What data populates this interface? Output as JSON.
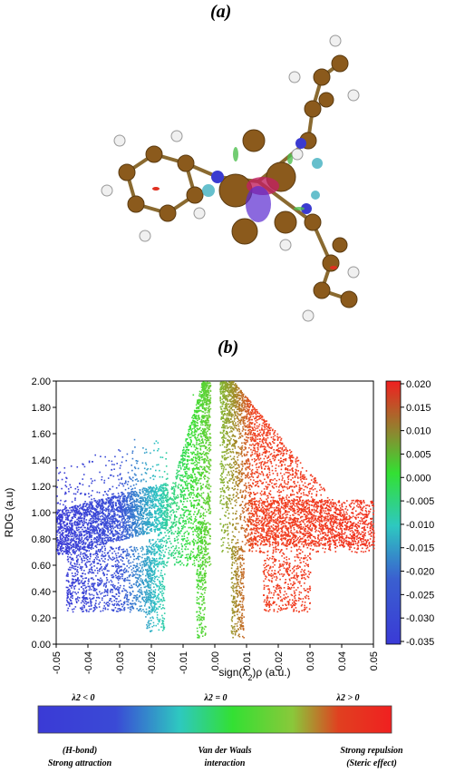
{
  "panel_labels": {
    "a": "(a)",
    "b": "(b)"
  },
  "chart_data": {
    "type": "scatter",
    "title": "",
    "xlabel": "sign(λ2)ρ (a.u.)",
    "ylabel": "RDG (a.u)",
    "xlim": [
      -0.05,
      0.05
    ],
    "ylim": [
      0.0,
      2.0
    ],
    "x_ticks": [
      "-0.05",
      "-0.04",
      "-0.03",
      "-0.02",
      "-0.01",
      "0.00",
      "0.01",
      "0.02",
      "0.03",
      "0.04",
      "0.05"
    ],
    "y_ticks": [
      "0.00",
      "0.20",
      "0.40",
      "0.60",
      "0.80",
      "1.00",
      "1.20",
      "1.40",
      "1.60",
      "1.80",
      "2.00"
    ],
    "colorbar": {
      "range": [
        -0.035,
        0.02
      ],
      "ticks": [
        "0.020",
        "0.015",
        "0.010",
        "0.005",
        "0.000",
        "-0.005",
        "-0.010",
        "-0.015",
        "-0.020",
        "-0.025",
        "-0.030",
        "-0.035"
      ],
      "colors": [
        "#3a3ad6",
        "#2ec8c0",
        "#33e033",
        "#8ac83a",
        "#f04020"
      ]
    },
    "series": [
      {
        "points": [
          [
            -0.049,
            0.95
          ],
          [
            -0.045,
            1.05
          ],
          [
            -0.04,
            1.15
          ],
          [
            -0.035,
            1.25
          ],
          [
            -0.03,
            1.3
          ],
          [
            -0.025,
            1.4
          ],
          [
            -0.045,
            0.6
          ],
          [
            -0.04,
            0.5
          ],
          [
            -0.035,
            0.4
          ],
          [
            -0.03,
            0.45
          ],
          [
            -0.025,
            0.6
          ],
          [
            -0.02,
            0.5
          ],
          [
            -0.015,
            1.1
          ],
          [
            -0.01,
            1.5
          ],
          [
            -0.007,
            1.9
          ],
          [
            -0.005,
            0.7
          ],
          [
            0.005,
            0.5
          ],
          [
            0.007,
            0.2
          ],
          [
            0.01,
            1.6
          ],
          [
            0.015,
            1.3
          ],
          [
            0.02,
            1.2
          ],
          [
            0.03,
            1.0
          ],
          [
            0.04,
            0.9
          ],
          [
            0.05,
            0.85
          ],
          [
            0.02,
            0.45
          ],
          [
            0.025,
            0.3
          ]
        ]
      }
    ]
  },
  "scale_bar": {
    "top_labels": [
      "λ2 < 0",
      "λ2 = 0",
      "λ2 > 0"
    ],
    "bottom_labels": [
      [
        "(H-bond)",
        "Strong attraction"
      ],
      [
        "Van der Waals",
        "interaction"
      ],
      [
        "Strong repulsion",
        "(Steric effect)"
      ]
    ]
  }
}
